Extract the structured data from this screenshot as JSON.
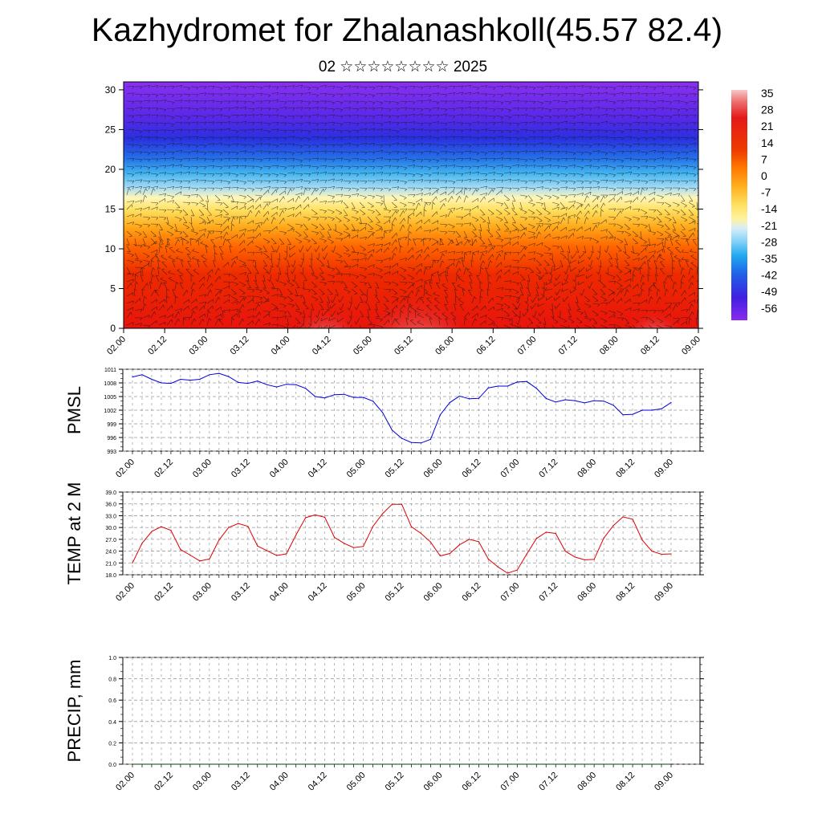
{
  "title": "Kazhydromet for Zhalanashkoll(45.57 82.4)",
  "subtitle": "02 ☆☆☆☆☆☆☆☆ 2025",
  "colors": {
    "pmsl_line": "#0000dd",
    "temp_line": "#dd0000",
    "precip_line": "#004400",
    "grid": "#999999"
  },
  "chart_data": [
    {
      "id": "vertical-section",
      "type": "heatmap",
      "x_ticks": [
        "02.00",
        "02.12",
        "03.00",
        "03.12",
        "04.00",
        "04.12",
        "05.00",
        "05.12",
        "06.00",
        "06.12",
        "07.00",
        "07.12",
        "08.00",
        "08.12",
        "09.00"
      ],
      "y_ticks": [
        "0",
        "5",
        "10",
        "15",
        "20",
        "25",
        "30"
      ],
      "ylim": [
        0,
        31
      ],
      "colorbar_labels": [
        "35",
        "28",
        "21",
        "14",
        "7",
        "0",
        "-7",
        "-14",
        "-21",
        "-28",
        "-35",
        "-42",
        "-49",
        "-56"
      ],
      "colorbar_range": [
        -60,
        39
      ],
      "wind_barbs": true
    },
    {
      "id": "pmsl",
      "type": "line",
      "ylabel": "PMSL",
      "ylim": [
        993,
        1011
      ],
      "y_ticks": [
        "1011",
        "1008",
        "1005",
        "1002",
        "999",
        "996",
        "993"
      ],
      "x_ticks": [
        "02.00",
        "02.12",
        "03.00",
        "03.12",
        "04.00",
        "04.12",
        "05.00",
        "05.12",
        "06.00",
        "06.12",
        "07.00",
        "07.12",
        "08.00",
        "08.12",
        "09.00"
      ],
      "xlim": [
        0,
        56
      ],
      "x": [
        0,
        1,
        2,
        3,
        4,
        5,
        6,
        7,
        8,
        9,
        10,
        11,
        12,
        13,
        14,
        15,
        16,
        17,
        18,
        19,
        20,
        21,
        22,
        23,
        24,
        25,
        26,
        27,
        28,
        29,
        30,
        31,
        32,
        33,
        34,
        35,
        36,
        37,
        38,
        39,
        40,
        41,
        42,
        43,
        44,
        45,
        46,
        47,
        48,
        49,
        50,
        51,
        52,
        53,
        54,
        55,
        56
      ],
      "values": [
        1009.3,
        1009.8,
        1008.8,
        1008.0,
        1007.9,
        1008.8,
        1008.6,
        1008.8,
        1009.8,
        1010.1,
        1009.4,
        1008.1,
        1007.9,
        1008.4,
        1007.6,
        1007.1,
        1007.7,
        1007.6,
        1006.8,
        1005.0,
        1004.7,
        1005.4,
        1005.5,
        1004.8,
        1004.8,
        1004.0,
        1001.5,
        997.6,
        995.8,
        994.9,
        994.8,
        995.6,
        1001.0,
        1003.7,
        1005.1,
        1004.5,
        1004.6,
        1006.9,
        1007.3,
        1007.3,
        1008.2,
        1008.3,
        1006.8,
        1004.6,
        1003.8,
        1004.3,
        1004.1,
        1003.6,
        1004.1,
        1004.0,
        1003.1,
        1001.0,
        1001.1,
        1002.0,
        1002.0,
        1002.3,
        1003.7
      ]
    },
    {
      "id": "temp",
      "type": "line",
      "ylabel": "TEMP at 2 M",
      "ylim": [
        18,
        39
      ],
      "y_ticks": [
        "39.0",
        "36.0",
        "33.0",
        "30.0",
        "27.0",
        "24.0",
        "21.0",
        "18.0"
      ],
      "x_ticks": [
        "02.00",
        "02.12",
        "03.00",
        "03.12",
        "04.00",
        "04.12",
        "05.00",
        "05.12",
        "06.00",
        "06.12",
        "07.00",
        "07.12",
        "08.00",
        "08.12",
        "09.00"
      ],
      "xlim": [
        0,
        56
      ],
      "x": [
        0,
        1,
        2,
        3,
        4,
        5,
        6,
        7,
        8,
        9,
        10,
        11,
        12,
        13,
        14,
        15,
        16,
        17,
        18,
        19,
        20,
        21,
        22,
        23,
        24,
        25,
        26,
        27,
        28,
        29,
        30,
        31,
        32,
        33,
        34,
        35,
        36,
        37,
        38,
        39,
        40,
        41,
        42,
        43,
        44,
        45,
        46,
        47,
        48,
        49,
        50,
        51,
        52,
        53,
        54,
        55,
        56
      ],
      "values": [
        21.0,
        26.0,
        29.0,
        30.2,
        29.3,
        24.4,
        23.0,
        21.5,
        22.0,
        26.8,
        30.0,
        31.0,
        30.3,
        25.3,
        24.1,
        22.9,
        23.3,
        28.1,
        32.5,
        33.2,
        32.6,
        27.5,
        26.0,
        24.9,
        25.2,
        30.3,
        33.5,
        35.9,
        35.9,
        30.2,
        28.5,
        26.3,
        22.8,
        23.4,
        25.6,
        27.0,
        26.4,
        22.0,
        20.0,
        18.4,
        19.2,
        23.3,
        27.2,
        28.8,
        28.5,
        24.0,
        22.5,
        21.8,
        21.9,
        27.3,
        30.5,
        32.7,
        32.1,
        26.8,
        24.0,
        23.2,
        23.3
      ]
    },
    {
      "id": "precip",
      "type": "line",
      "ylabel": "PRECIP, mm",
      "ylim": [
        0,
        1.0
      ],
      "y_ticks": [
        "1.0",
        "0.8",
        "0.6",
        "0.4",
        "0.2",
        "0.0"
      ],
      "x_ticks": [
        "02.00",
        "02.12",
        "03.00",
        "03.12",
        "04.00",
        "04.12",
        "05.00",
        "05.12",
        "06.00",
        "06.12",
        "07.00",
        "07.12",
        "08.00",
        "08.12",
        "09.00"
      ],
      "xlim": [
        0,
        56
      ],
      "x": [
        0,
        56
      ],
      "values": [
        0,
        0
      ]
    }
  ]
}
